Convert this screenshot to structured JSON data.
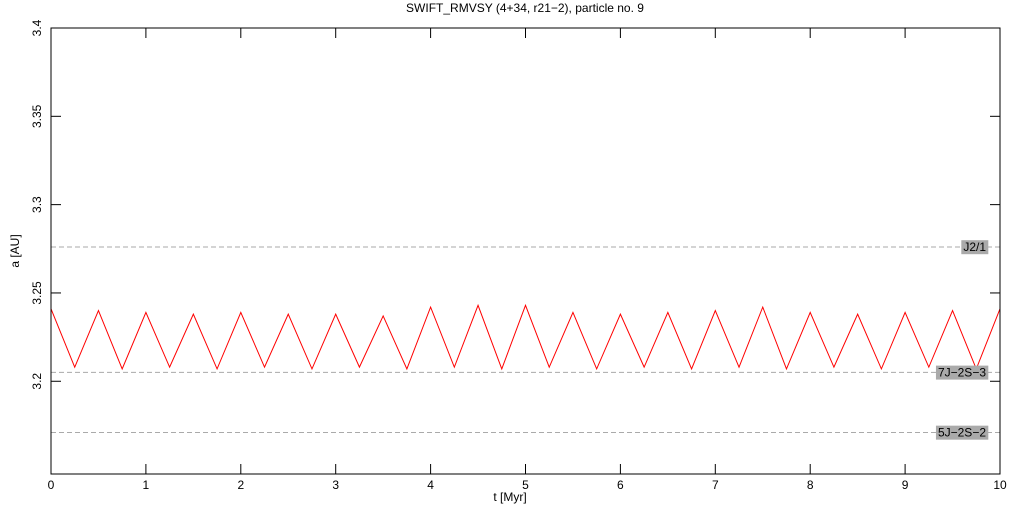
{
  "chart_data": {
    "type": "line",
    "title": "SWIFT_RMVSY (4+34, r21−2), particle no. 9",
    "x_label": "t [Myr]",
    "y_label": "a [AU]",
    "x": [
      0,
      0.25,
      0.5,
      0.75,
      1,
      1.25,
      1.5,
      1.75,
      2,
      2.25,
      2.5,
      2.75,
      3,
      3.25,
      3.5,
      3.75,
      4,
      4.25,
      4.5,
      4.75,
      5,
      5.25,
      5.5,
      5.75,
      6,
      6.25,
      6.5,
      6.75,
      7,
      7.25,
      7.5,
      7.75,
      8,
      8.25,
      8.5,
      8.75,
      9,
      9.25,
      9.5,
      9.75,
      10
    ],
    "series": [
      {
        "name": "a",
        "color": "#ff0000",
        "values": [
          3.241,
          3.208,
          3.24,
          3.207,
          3.239,
          3.208,
          3.238,
          3.207,
          3.239,
          3.208,
          3.238,
          3.207,
          3.238,
          3.208,
          3.237,
          3.207,
          3.242,
          3.208,
          3.243,
          3.207,
          3.243,
          3.208,
          3.239,
          3.207,
          3.238,
          3.208,
          3.239,
          3.207,
          3.24,
          3.208,
          3.242,
          3.207,
          3.239,
          3.208,
          3.238,
          3.207,
          3.239,
          3.208,
          3.24,
          3.207,
          3.241
        ]
      }
    ],
    "xlim": [
      0,
      10
    ],
    "xticks": [
      0,
      1,
      2,
      3,
      4,
      5,
      6,
      7,
      8,
      9,
      10
    ],
    "ylim": [
      3.1475,
      3.4
    ],
    "yticks": [
      3.2,
      3.25,
      3.3,
      3.35,
      3.4
    ],
    "annotations": [
      {
        "label": "J2/1",
        "value": 3.276
      },
      {
        "label": "7J−2S−3",
        "value": 3.205
      },
      {
        "label": "5J−2S−2",
        "value": 3.171
      }
    ]
  }
}
